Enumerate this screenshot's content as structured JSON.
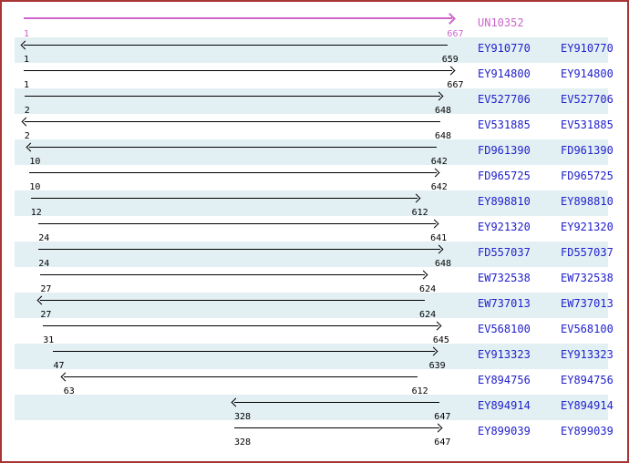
{
  "sequence_map": {
    "reference": {
      "label": "UN10352",
      "start": "1",
      "end": "667",
      "direction": "right"
    },
    "ests": [
      {
        "label": "EY910770",
        "label2": "EY910770",
        "start": "1",
        "end": "659",
        "direction": "left"
      },
      {
        "label": "EY914800",
        "label2": "EY914800",
        "start": "1",
        "end": "667",
        "direction": "right"
      },
      {
        "label": "EV527706",
        "label2": "EV527706",
        "start": "2",
        "end": "648",
        "direction": "right"
      },
      {
        "label": "EV531885",
        "label2": "EV531885",
        "start": "2",
        "end": "648",
        "direction": "left"
      },
      {
        "label": "FD961390",
        "label2": "FD961390",
        "start": "10",
        "end": "642",
        "direction": "left"
      },
      {
        "label": "FD965725",
        "label2": "FD965725",
        "start": "10",
        "end": "642",
        "direction": "right"
      },
      {
        "label": "EY898810",
        "label2": "EY898810",
        "start": "12",
        "end": "612",
        "direction": "right"
      },
      {
        "label": "EY921320",
        "label2": "EY921320",
        "start": "24",
        "end": "641",
        "direction": "right"
      },
      {
        "label": "FD557037",
        "label2": "FD557037",
        "start": "24",
        "end": "648",
        "direction": "right"
      },
      {
        "label": "EW732538",
        "label2": "EW732538",
        "start": "27",
        "end": "624",
        "direction": "right"
      },
      {
        "label": "EW737013",
        "label2": "EW737013",
        "start": "27",
        "end": "624",
        "direction": "left"
      },
      {
        "label": "EV568100",
        "label2": "EV568100",
        "start": "31",
        "end": "645",
        "direction": "right"
      },
      {
        "label": "EY913323",
        "label2": "EY913323",
        "start": "47",
        "end": "639",
        "direction": "right"
      },
      {
        "label": "EY894756",
        "label2": "EY894756",
        "start": "63",
        "end": "612",
        "direction": "left"
      },
      {
        "label": "EY894914",
        "label2": "EY894914",
        "start": "328",
        "end": "647",
        "direction": "left"
      },
      {
        "label": "EY899039",
        "label2": "EY899039",
        "start": "328",
        "end": "647",
        "direction": "right"
      }
    ],
    "coordinate_range": {
      "min": 1,
      "max": 667
    }
  },
  "colors": {
    "reference_magenta": "#cc66cc",
    "accession_blue": "#2121cc",
    "row_highlight": "#e3f0f3",
    "arrow_black": "#000000",
    "coord_text": "#000000",
    "frame_border": "#a93434",
    "background": "#ffffff"
  }
}
